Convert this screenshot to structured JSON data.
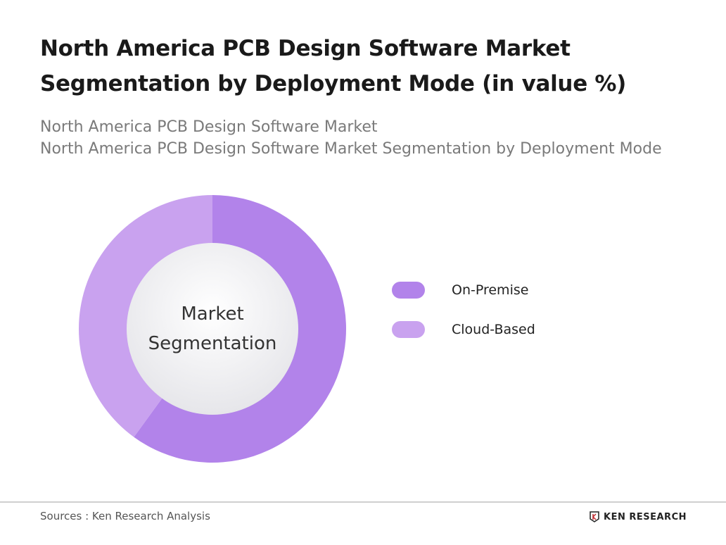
{
  "title": "North America PCB Design Software Market Segmentation by Deployment Mode (in value %)",
  "subtitle_lines": [
    "North America PCB Design Software Market",
    "North America PCB Design Software Market Segmentation by Deployment Mode"
  ],
  "chart_data": {
    "type": "pie",
    "variant": "donut",
    "center_label": [
      "Market",
      "Segmentation"
    ],
    "categories": [
      "On-Premise",
      "Cloud-Based"
    ],
    "values": [
      60,
      40
    ],
    "colors": [
      "#b283ea",
      "#c9a2ef"
    ],
    "legend_position": "right"
  },
  "footer": {
    "source": "Sources : Ken Research Analysis",
    "logo_text": "KEN RESEARCH"
  }
}
